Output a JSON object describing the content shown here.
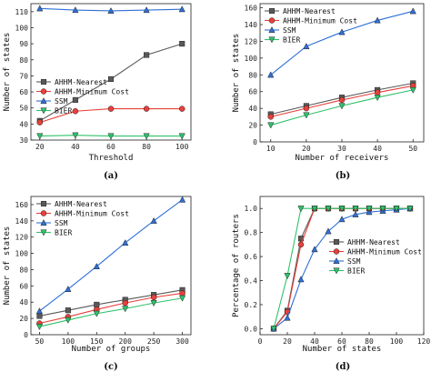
{
  "chart_data": [
    {
      "type": "line",
      "panel_label": "(a)",
      "xlabel": "Threshold",
      "ylabel": "Number of states",
      "x": [
        20,
        40,
        60,
        80,
        100
      ],
      "xlim": [
        15,
        105
      ],
      "ylim": [
        30,
        115
      ],
      "xticks": [
        20,
        40,
        60,
        80,
        100
      ],
      "yticks": [
        30,
        40,
        50,
        60,
        70,
        80,
        90,
        100,
        110
      ],
      "legend": "middle-left",
      "series": [
        {
          "name": "AHHM-Nearest",
          "values": [
            42,
            55,
            68,
            83,
            90
          ]
        },
        {
          "name": "AHHM-Minimum Cost",
          "values": [
            41,
            48,
            49.5,
            49.5,
            49.5
          ]
        },
        {
          "name": "SSM",
          "values": [
            112,
            111,
            110.5,
            111,
            111.5
          ]
        },
        {
          "name": "BIER",
          "values": [
            32.5,
            33,
            32.5,
            32.5,
            32.5
          ]
        }
      ]
    },
    {
      "type": "line",
      "panel_label": "(b)",
      "xlabel": "Number of receivers",
      "ylabel": "Number of states",
      "x": [
        10,
        20,
        30,
        40,
        50
      ],
      "xlim": [
        7,
        53
      ],
      "ylim": [
        0,
        165
      ],
      "xticks": [
        10,
        20,
        30,
        40,
        50
      ],
      "yticks": [
        0,
        20,
        40,
        60,
        80,
        100,
        120,
        140,
        160
      ],
      "legend": "top-left",
      "series": [
        {
          "name": "AHHM-Nearest",
          "values": [
            33,
            43,
            53,
            62,
            70
          ]
        },
        {
          "name": "AHHM-Minimum Cost",
          "values": [
            30,
            40,
            50,
            59,
            67
          ]
        },
        {
          "name": "SSM",
          "values": [
            80,
            114,
            131,
            145,
            156
          ]
        },
        {
          "name": "BIER",
          "values": [
            20,
            32,
            43,
            53,
            62
          ]
        }
      ]
    },
    {
      "type": "line",
      "panel_label": "(c)",
      "xlabel": "Number of groups",
      "ylabel": "Number of states",
      "x": [
        50,
        100,
        150,
        200,
        250,
        300
      ],
      "xlim": [
        35,
        315
      ],
      "ylim": [
        0,
        170
      ],
      "xticks": [
        50,
        100,
        150,
        200,
        250,
        300
      ],
      "yticks": [
        0,
        20,
        40,
        60,
        80,
        100,
        120,
        140,
        160
      ],
      "legend": "top-left",
      "series": [
        {
          "name": "AHHM-Nearest",
          "values": [
            23,
            30,
            37,
            43,
            49,
            55
          ]
        },
        {
          "name": "AHHM-Minimum Cost",
          "values": [
            14,
            22,
            31,
            39,
            46,
            51
          ]
        },
        {
          "name": "SSM",
          "values": [
            29,
            56,
            84,
            113,
            140,
            166
          ]
        },
        {
          "name": "BIER",
          "values": [
            10,
            18,
            26,
            32,
            39,
            45
          ]
        }
      ]
    },
    {
      "type": "line",
      "panel_label": "(d)",
      "xlabel": "Number of states",
      "ylabel": "Percentage of routers",
      "xlim": [
        0,
        120
      ],
      "ylim": [
        -0.05,
        1.1
      ],
      "xticks": [
        0,
        20,
        40,
        60,
        80,
        100,
        120
      ],
      "yticks": [
        0.0,
        0.2,
        0.4,
        0.6,
        0.8,
        1.0
      ],
      "legend": "middle-right",
      "series": [
        {
          "name": "AHHM-Nearest",
          "x": [
            10,
            20,
            30,
            40,
            50,
            60,
            70,
            80,
            90,
            100,
            110
          ],
          "values": [
            0.0,
            0.15,
            0.75,
            1.0,
            1.0,
            1.0,
            1.0,
            1.0,
            1.0,
            1.0,
            1.0
          ]
        },
        {
          "name": "AHHM-Minimum Cost",
          "x": [
            10,
            20,
            30,
            40,
            50,
            60,
            70,
            80,
            90,
            100,
            110
          ],
          "values": [
            0.0,
            0.14,
            0.7,
            1.0,
            1.0,
            1.0,
            1.0,
            1.0,
            1.0,
            1.0,
            1.0
          ]
        },
        {
          "name": "SSM",
          "x": [
            10,
            20,
            30,
            40,
            50,
            60,
            70,
            80,
            90,
            100,
            110
          ],
          "values": [
            0.0,
            0.09,
            0.41,
            0.66,
            0.81,
            0.91,
            0.95,
            0.97,
            0.98,
            0.99,
            1.0
          ]
        },
        {
          "name": "BIER",
          "x": [
            10,
            20,
            30,
            40,
            50,
            60,
            70,
            80,
            90,
            100,
            110
          ],
          "values": [
            0.0,
            0.44,
            1.0,
            1.0,
            1.0,
            1.0,
            1.0,
            1.0,
            1.0,
            1.0,
            1.0
          ]
        }
      ]
    }
  ],
  "style": {
    "colors": {
      "AHHM-Nearest": "#595959",
      "AHHM-Minimum Cost": "#e8403a",
      "SSM": "#2f6fd6",
      "BIER": "#2fc26b"
    },
    "markers": {
      "AHHM-Nearest": "square",
      "AHHM-Minimum Cost": "circle",
      "SSM": "triangle-up",
      "BIER": "triangle-down"
    }
  }
}
